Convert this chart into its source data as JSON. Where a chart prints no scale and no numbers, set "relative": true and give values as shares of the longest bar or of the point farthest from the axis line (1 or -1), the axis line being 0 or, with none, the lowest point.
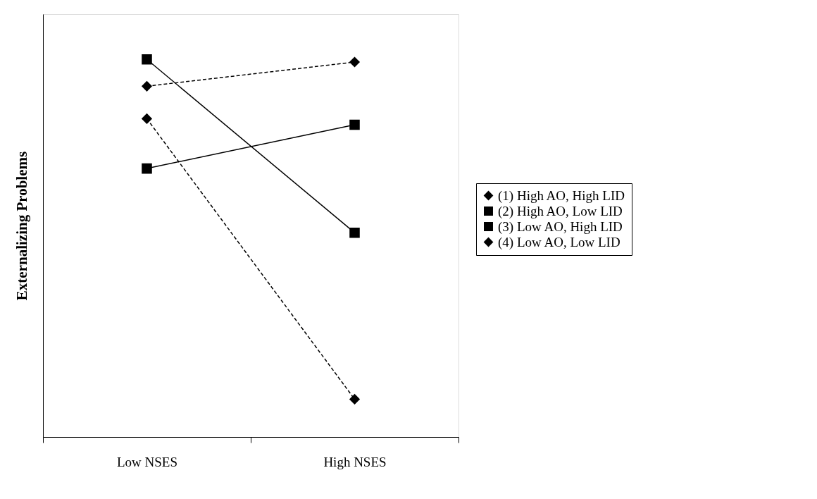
{
  "chart_data": {
    "type": "line",
    "relative": true,
    "ylabel": "Externalizing Problems",
    "categories": [
      "Low NSES",
      "High NSES"
    ],
    "series": [
      {
        "name": "(1) High AO, High LID",
        "color": "#000000",
        "values": [
          0.843,
          0.1
        ],
        "marker": "diamond",
        "line_style": "dashed"
      },
      {
        "name": "(2) High AO, Low LID",
        "color": "#000000",
        "values": [
          0.711,
          0.827
        ],
        "marker": "square",
        "line_style": "solid"
      },
      {
        "name": "(3) Low AO, High LID",
        "color": "#000000",
        "values": [
          1.0,
          0.541
        ],
        "marker": "square",
        "line_style": "solid"
      },
      {
        "name": "(4) Low AO, Low LID",
        "color": "#000000",
        "values": [
          0.929,
          0.993
        ],
        "marker": "diamond",
        "line_style": "dashed"
      }
    ],
    "legend": "right",
    "grid": false
  }
}
